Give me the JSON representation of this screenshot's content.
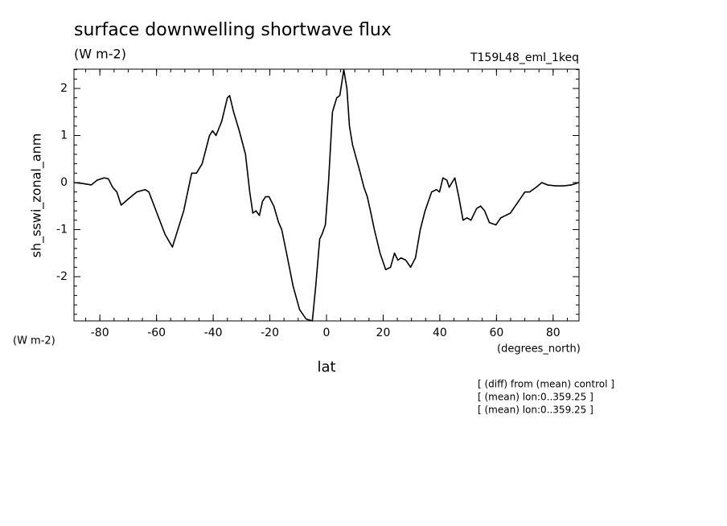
{
  "chart_data": {
    "type": "line",
    "title": "surface downwelling shortwave flux",
    "units": "(W m-2)",
    "dataset": "T159L48_eml_1keq",
    "y_label": "sh_sswi_zonal_anm",
    "y_units": "(W m-2)",
    "x_label": "lat",
    "x_units": "(degrees_north)",
    "notes": [
      "[ (diff) from (mean) control ]",
      "[ (mean) lon:0..359.25 ]",
      "[ (mean) lon:0..359.25 ]"
    ],
    "xlim": [
      -89.14,
      89.14
    ],
    "ylim": [
      -2.94,
      2.41
    ],
    "xticks": [
      -80,
      -60,
      -40,
      -20,
      0,
      20,
      40,
      60,
      80
    ],
    "yticks": [
      -2,
      -1,
      0,
      1,
      2
    ],
    "x": [
      -89.1,
      -86,
      -83,
      -81,
      -78.5,
      -77,
      -75.5,
      -74,
      -72.5,
      -70,
      -67,
      -64,
      -62.7,
      -57,
      -54.4,
      -50.4,
      -47.6,
      -45.9,
      -43.9,
      -41.3,
      -40.2,
      -39,
      -37,
      -35,
      -34.2,
      -32.8,
      -30.8,
      -28.6,
      -27.1,
      -26,
      -24.9,
      -23.7,
      -22.6,
      -21.5,
      -20.3,
      -18.6,
      -16.9,
      -15.8,
      -14.1,
      -11.8,
      -9.5,
      -7.2,
      -5,
      -3.8,
      -2.4,
      -1.6,
      -0.4,
      0.7,
      2.1,
      3.6,
      4.7,
      6.1,
      7.2,
      8.1,
      9.2,
      11.5,
      13.2,
      14.4,
      15.5,
      16.9,
      18.9,
      20.9,
      22.6,
      24,
      25.2,
      26.3,
      28,
      29.7,
      31.4,
      33.1,
      34.8,
      37.1,
      38.8,
      39.9,
      41.1,
      42.5,
      43.3,
      45.3,
      46.7,
      48.2,
      49.6,
      51,
      53,
      54.4,
      55.8,
      57.5,
      59.8,
      61.5,
      63.2,
      64.9,
      66.6,
      68.9,
      70,
      71.7,
      74,
      76,
      78,
      80.8,
      83.7,
      86.5,
      89.1
    ],
    "series": [
      {
        "color": "#000000",
        "values": [
          0.0,
          -0.02,
          -0.05,
          0.05,
          0.1,
          0.08,
          -0.1,
          -0.2,
          -0.48,
          -0.35,
          -0.2,
          -0.15,
          -0.2,
          -1.1,
          -1.37,
          -0.6,
          0.2,
          0.2,
          0.4,
          1.0,
          1.1,
          1.0,
          1.3,
          1.8,
          1.85,
          1.5,
          1.1,
          0.6,
          -0.2,
          -0.65,
          -0.6,
          -0.7,
          -0.4,
          -0.3,
          -0.3,
          -0.5,
          -0.85,
          -1.0,
          -1.5,
          -2.2,
          -2.7,
          -2.9,
          -2.94,
          -2.2,
          -1.2,
          -1.1,
          -0.9,
          0.0,
          1.5,
          1.8,
          1.85,
          2.4,
          2.0,
          1.2,
          0.8,
          0.3,
          -0.1,
          -0.3,
          -0.6,
          -1.0,
          -1.5,
          -1.85,
          -1.8,
          -1.5,
          -1.65,
          -1.6,
          -1.65,
          -1.8,
          -1.6,
          -1.0,
          -0.6,
          -0.2,
          -0.15,
          -0.2,
          0.1,
          0.05,
          -0.1,
          0.1,
          -0.3,
          -0.8,
          -0.75,
          -0.8,
          -0.55,
          -0.5,
          -0.6,
          -0.85,
          -0.9,
          -0.75,
          -0.7,
          -0.65,
          -0.5,
          -0.3,
          -0.2,
          -0.2,
          -0.1,
          0.0,
          -0.05,
          -0.07,
          -0.07,
          -0.05,
          0.0
        ]
      }
    ]
  }
}
